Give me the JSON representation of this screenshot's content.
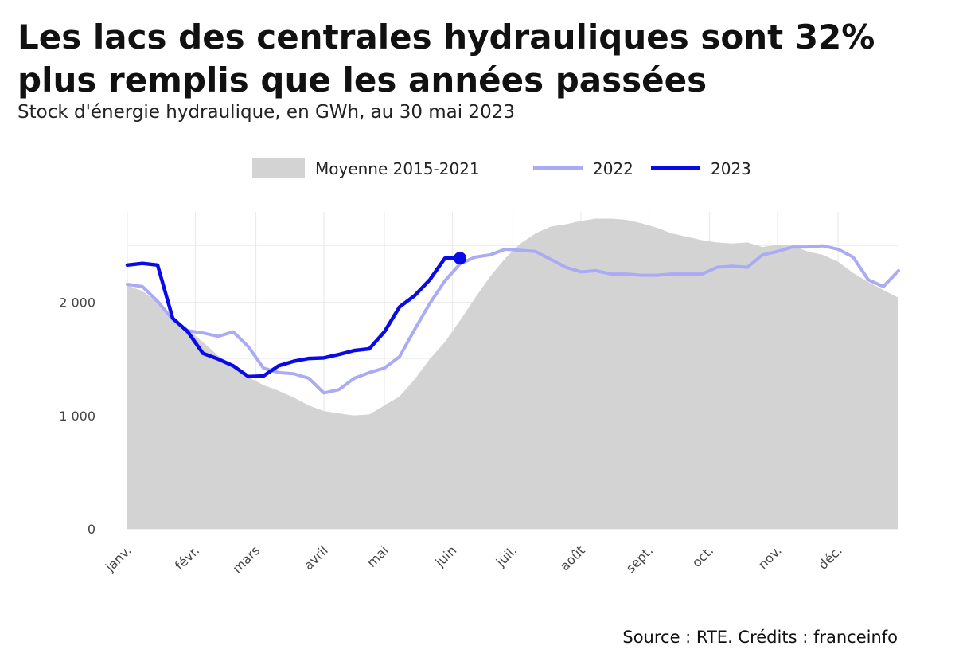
{
  "header": {
    "title": "Les lacs des centrales hydrauliques sont 32% plus remplis que les années passées",
    "subtitle": "Stock d'énergie hydraulique, en GWh, au 30 mai 2023"
  },
  "footer": {
    "source": "Source : RTE. Crédits : franceinfo"
  },
  "colors": {
    "average_fill": "#d3d3d3",
    "series_2022": "#aaaaf5",
    "series_2023": "#0a0ae6",
    "grid": "#ebebeb"
  },
  "chart_data": {
    "type": "line",
    "title": "Les lacs des centrales hydrauliques sont 32% plus remplis que les années passées",
    "subtitle": "Stock d'énergie hydraulique, en GWh, au 30 mai 2023",
    "xlabel": "",
    "ylabel": "",
    "x_unit": "week of year",
    "xlim": [
      1,
      53
    ],
    "ylim": [
      0,
      2800
    ],
    "y_ticks": [
      0,
      1000,
      2000
    ],
    "y_tick_labels": [
      "0",
      "1 000",
      "2 000"
    ],
    "x_ticks": [
      1,
      5.5,
      9.5,
      14,
      18,
      22.5,
      26.5,
      31,
      35.5,
      39.5,
      44,
      48
    ],
    "x_tick_labels": [
      "janv.",
      "févr.",
      "mars",
      "avril",
      "mai",
      "juin",
      "juil.",
      "août",
      "sept.",
      "oct.",
      "nov.",
      "déc."
    ],
    "grid": true,
    "legend": "top",
    "series": [
      {
        "name": "Moyenne 2015-2021",
        "kind": "area",
        "x": [
          1,
          2,
          3,
          4,
          5,
          6,
          7,
          8,
          9,
          10,
          11,
          12,
          13,
          14,
          15,
          16,
          17,
          18,
          19,
          20,
          21,
          22,
          23,
          24,
          25,
          26,
          27,
          28,
          29,
          30,
          31,
          32,
          33,
          34,
          35,
          36,
          37,
          38,
          39,
          40,
          41,
          42,
          43,
          44,
          45,
          46,
          47,
          48,
          49,
          50,
          51,
          52
        ],
        "values": [
          2150,
          2100,
          2000,
          1880,
          1760,
          1650,
          1530,
          1420,
          1340,
          1270,
          1220,
          1160,
          1090,
          1040,
          1020,
          1000,
          1010,
          1090,
          1170,
          1320,
          1500,
          1650,
          1840,
          2040,
          2230,
          2390,
          2520,
          2610,
          2670,
          2690,
          2720,
          2740,
          2740,
          2730,
          2700,
          2660,
          2610,
          2580,
          2550,
          2530,
          2520,
          2530,
          2490,
          2510,
          2500,
          2450,
          2420,
          2360,
          2260,
          2180,
          2110,
          2040
        ]
      },
      {
        "name": "2022",
        "kind": "line",
        "x": [
          1,
          2,
          3,
          4,
          5,
          6,
          7,
          8,
          9,
          10,
          11,
          12,
          13,
          14,
          15,
          16,
          17,
          18,
          19,
          20,
          21,
          22,
          23,
          24,
          25,
          26,
          27,
          28,
          29,
          30,
          31,
          32,
          33,
          34,
          35,
          36,
          37,
          38,
          39,
          40,
          41,
          42,
          43,
          44,
          45,
          46,
          47,
          48,
          49,
          50,
          51,
          52
        ],
        "values": [
          2160,
          2140,
          2010,
          1850,
          1750,
          1730,
          1700,
          1740,
          1610,
          1420,
          1380,
          1370,
          1330,
          1200,
          1230,
          1330,
          1380,
          1420,
          1520,
          1760,
          1990,
          2190,
          2340,
          2400,
          2420,
          2470,
          2460,
          2450,
          2380,
          2310,
          2270,
          2280,
          2250,
          2250,
          2240,
          2240,
          2250,
          2250,
          2250,
          2310,
          2320,
          2310,
          2420,
          2450,
          2490,
          2490,
          2500,
          2470,
          2400,
          2200,
          2140,
          2280
        ]
      },
      {
        "name": "2023",
        "kind": "line",
        "x": [
          1,
          2,
          3,
          4,
          5,
          6,
          7,
          8,
          9,
          10,
          11,
          12,
          13,
          14,
          15,
          16,
          17,
          18,
          19,
          20,
          21,
          22,
          23
        ],
        "values": [
          2330,
          2345,
          2330,
          1860,
          1740,
          1550,
          1500,
          1440,
          1345,
          1350,
          1440,
          1480,
          1505,
          1510,
          1540,
          1575,
          1590,
          1740,
          1960,
          2060,
          2200,
          2390,
          2390
        ]
      }
    ]
  }
}
